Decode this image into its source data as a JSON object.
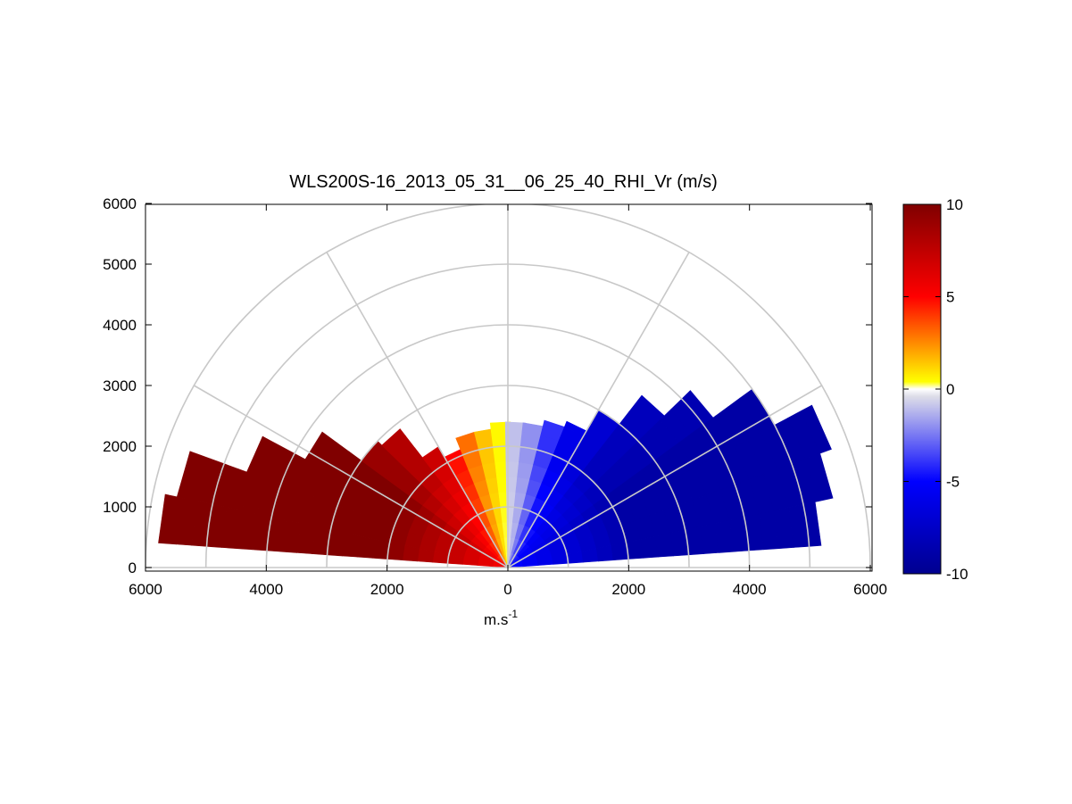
{
  "chart_data": {
    "type": "heatmap",
    "title": "WLS200S-16_2013_05_31__06_25_40_RHI_Vr (m/s)",
    "xlabel": "m.s",
    "xlabel_superscript": "-1",
    "ylabel": "",
    "xlim": [
      -6000,
      6000
    ],
    "ylim": [
      0,
      6000
    ],
    "x_ticks": [
      -6000,
      -4000,
      -2000,
      0,
      2000,
      4000,
      6000
    ],
    "x_tick_labels": [
      "6000",
      "4000",
      "2000",
      "0",
      "2000",
      "4000",
      "6000"
    ],
    "y_ticks": [
      0,
      1000,
      2000,
      3000,
      4000,
      5000,
      6000
    ],
    "y_tick_labels": [
      "0",
      "1000",
      "2000",
      "3000",
      "4000",
      "5000",
      "6000"
    ],
    "polar_grid": {
      "ranges": [
        1000,
        2000,
        3000,
        4000,
        5000,
        6000
      ],
      "angles_deg": [
        0,
        30,
        60,
        90,
        120,
        150,
        180
      ]
    },
    "colorbar": {
      "min": -10,
      "max": 10,
      "ticks": [
        -10,
        -5,
        0,
        5,
        10
      ],
      "tick_labels": [
        "-10",
        "-5",
        "0",
        "5",
        "10"
      ],
      "colormap": [
        "#00008f",
        "#0000ff",
        "#dddde8",
        "#ffffff",
        "#ffff00",
        "#ff0000",
        "#800000"
      ]
    },
    "series": [
      {
        "elevation_deg": 172,
        "max_range": 5800,
        "velocity": 10
      },
      {
        "elevation_deg": 164,
        "max_range": 5600,
        "velocity": 10
      },
      {
        "elevation_deg": 156,
        "max_range": 4600,
        "velocity": 10
      },
      {
        "elevation_deg": 148,
        "max_range": 3800,
        "velocity": 10
      },
      {
        "elevation_deg": 140,
        "max_range": 3000,
        "velocity": 9
      },
      {
        "elevation_deg": 132,
        "max_range": 2900,
        "velocity": 8
      },
      {
        "elevation_deg": 124,
        "max_range": 2300,
        "velocity": 7
      },
      {
        "elevation_deg": 116,
        "max_range": 2100,
        "velocity": 5
      },
      {
        "elevation_deg": 108,
        "max_range": 2300,
        "velocity": 3
      },
      {
        "elevation_deg": 100,
        "max_range": 2300,
        "velocity": 1.5
      },
      {
        "elevation_deg": 93,
        "max_range": 2400,
        "velocity": 0.5
      },
      {
        "elevation_deg": 87,
        "max_range": 2400,
        "velocity": -1
      },
      {
        "elevation_deg": 80,
        "max_range": 2400,
        "velocity": -2
      },
      {
        "elevation_deg": 72,
        "max_range": 2500,
        "velocity": -4
      },
      {
        "elevation_deg": 64,
        "max_range": 2600,
        "velocity": -6
      },
      {
        "elevation_deg": 56,
        "max_range": 3000,
        "velocity": -7
      },
      {
        "elevation_deg": 48,
        "max_range": 3600,
        "velocity": -8
      },
      {
        "elevation_deg": 40,
        "max_range": 4200,
        "velocity": -8.5
      },
      {
        "elevation_deg": 32,
        "max_range": 5000,
        "velocity": -9
      },
      {
        "elevation_deg": 24,
        "max_range": 5700,
        "velocity": -9
      },
      {
        "elevation_deg": 16,
        "max_range": 5500,
        "velocity": -9
      },
      {
        "elevation_deg": 8,
        "max_range": 5200,
        "velocity": -9
      }
    ]
  }
}
